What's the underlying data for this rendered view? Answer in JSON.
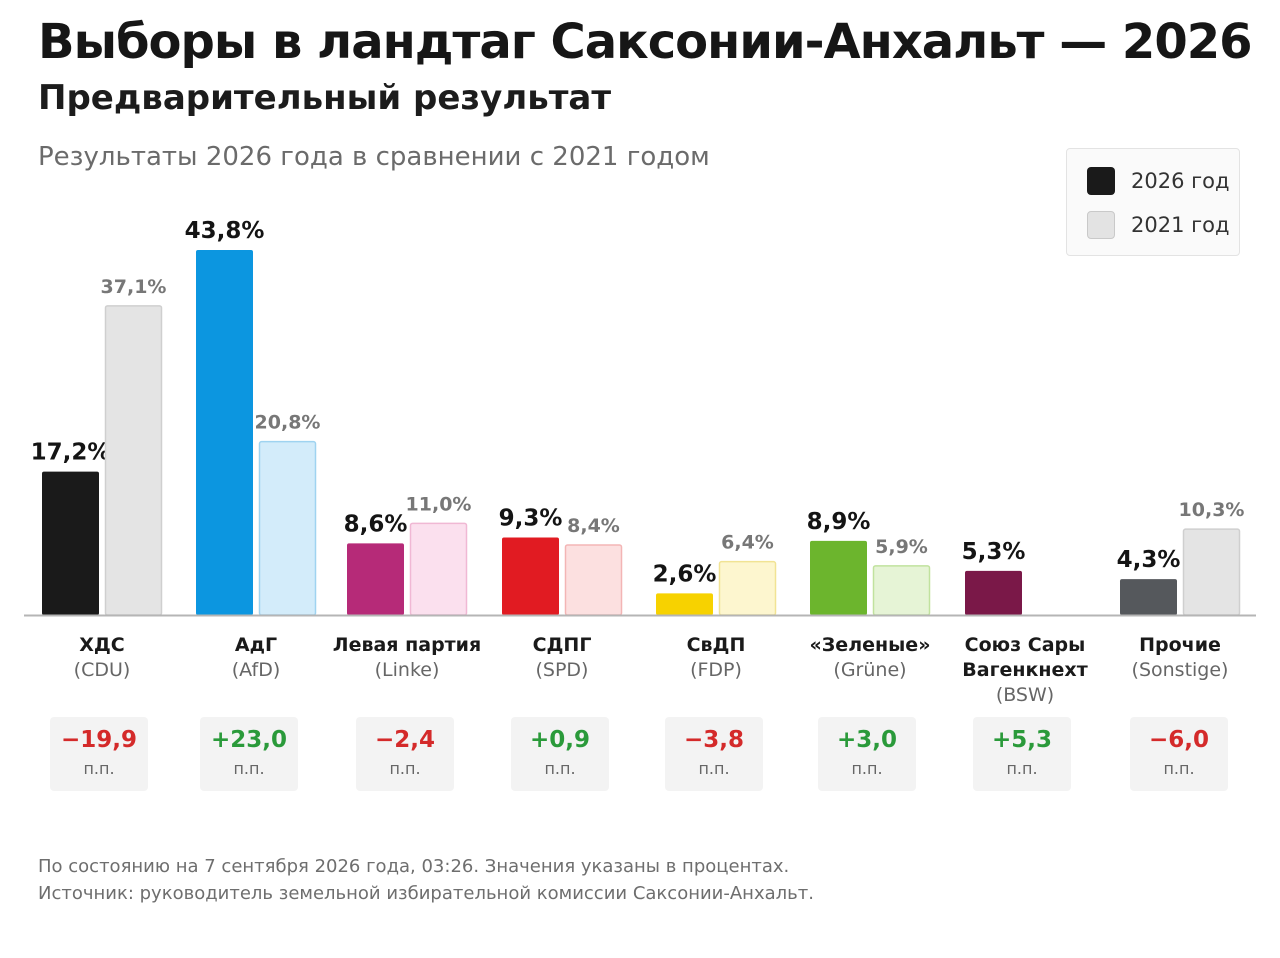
{
  "header": {
    "title": "Выборы в ландтаг Саксонии-Анхальт — 2026",
    "subtitle": "Предварительный результат",
    "caption": "Результаты 2026 года в сравнении с 2021 годом"
  },
  "legend": {
    "items": [
      {
        "label": "2026 год",
        "color": "#1a1a1a"
      },
      {
        "label": "2021 год",
        "color": "#e3e3e3"
      }
    ]
  },
  "delta_unit": "п.п.",
  "colors": {
    "positive": "#2a9a3a",
    "negative": "#d42a2a",
    "axis": "#b5b5b5"
  },
  "chart_data": {
    "type": "bar",
    "ylim": [
      0,
      45
    ],
    "grid": false,
    "legend_position": "top-right",
    "categories": [
      "ХДС",
      "АдГ",
      "Левая партия",
      "СДПГ",
      "СвДП",
      "«Зеленые»",
      "Союз Сары Вагенкнехт",
      "Прочие"
    ],
    "parties": [
      {
        "name_lines": [
          "ХДС"
        ],
        "abbr": "(CDU)",
        "v2026": 17.2,
        "v2021": 37.1,
        "label2026": "17,2%",
        "label2021": "37,1%",
        "delta": "−19,9",
        "delta_sign": "negative",
        "color2026": "#1a1a1a",
        "color2021": "#e4e4e4",
        "stroke2021": "#cfcfcf"
      },
      {
        "name_lines": [
          "АдГ"
        ],
        "abbr": "(AfD)",
        "v2026": 43.8,
        "v2021": 20.8,
        "label2026": "43,8%",
        "label2021": "20,8%",
        "delta": "+23,0",
        "delta_sign": "positive",
        "color2026": "#0c96e0",
        "color2021": "#d3ecfa",
        "stroke2021": "#9fd3f0"
      },
      {
        "name_lines": [
          "Левая партия"
        ],
        "abbr": "(Linke)",
        "v2026": 8.6,
        "v2021": 11.0,
        "label2026": "8,6%",
        "label2021": "11,0%",
        "delta": "−2,4",
        "delta_sign": "negative",
        "color2026": "#b62a78",
        "color2021": "#fbe0ee",
        "stroke2021": "#f0b8d4"
      },
      {
        "name_lines": [
          "СДПГ"
        ],
        "abbr": "(SPD)",
        "v2026": 9.3,
        "v2021": 8.4,
        "label2026": "9,3%",
        "label2021": "8,4%",
        "delta": "+0,9",
        "delta_sign": "positive",
        "color2026": "#e11b22",
        "color2021": "#fce0e0",
        "stroke2021": "#f3b5b5"
      },
      {
        "name_lines": [
          "СвДП"
        ],
        "abbr": "(FDP)",
        "v2026": 2.6,
        "v2021": 6.4,
        "label2026": "2,6%",
        "label2021": "6,4%",
        "delta": "−3,8",
        "delta_sign": "negative",
        "color2026": "#f7d200",
        "color2021": "#fdf6cf",
        "stroke2021": "#f1e394"
      },
      {
        "name_lines": [
          "«Зеленые»"
        ],
        "abbr": "(Grüne)",
        "v2026": 8.9,
        "v2021": 5.9,
        "label2026": "8,9%",
        "label2021": "5,9%",
        "delta": "+3,0",
        "delta_sign": "positive",
        "color2026": "#6cb52d",
        "color2021": "#e6f4d6",
        "stroke2021": "#c1e29e"
      },
      {
        "name_lines": [
          "Союз Сары",
          "Вагенкнехт"
        ],
        "abbr": "(BSW)",
        "v2026": 5.3,
        "v2021": null,
        "label2026": "5,3%",
        "label2021": "",
        "delta": "+5,3",
        "delta_sign": "positive",
        "color2026": "#7a1848",
        "color2021": "#ffffff",
        "stroke2021": "#ffffff"
      },
      {
        "name_lines": [
          "Прочие"
        ],
        "abbr": "(Sonstige)",
        "v2026": 4.3,
        "v2021": 10.3,
        "label2026": "4,3%",
        "label2021": "10,3%",
        "delta": "−6,0",
        "delta_sign": "negative",
        "color2026": "#55585c",
        "color2021": "#e4e4e4",
        "stroke2021": "#cfcfcf"
      }
    ]
  },
  "footer": {
    "line1": "По состоянию на 7 сентября 2026 года, 03:26. Значения указаны в процентах.",
    "line2": "Источник: руководитель земельной избирательной комиссии Саксонии-Анхальт."
  }
}
